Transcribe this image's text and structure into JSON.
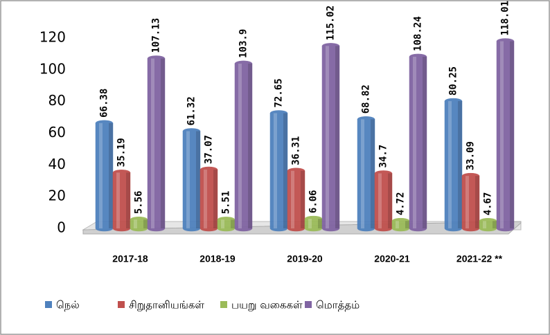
{
  "chart_data": {
    "type": "bar",
    "categories": [
      "2017-18",
      "2018-19",
      "2019-20",
      "2020-21",
      "2021-22 **"
    ],
    "series": [
      {
        "name": "நெல்",
        "color": "#4f81bd",
        "values": [
          66.38,
          61.32,
          72.65,
          68.82,
          80.25
        ]
      },
      {
        "name": "சிறுதானியங்கள்",
        "color": "#c0504d",
        "values": [
          35.19,
          37.07,
          36.31,
          34.7,
          33.09
        ]
      },
      {
        "name": "பயறு வகைகள்",
        "color": "#9bbb59",
        "values": [
          5.56,
          5.51,
          6.06,
          4.72,
          4.67
        ]
      },
      {
        "name": "மொத்தம்",
        "color": "#8064a2",
        "values": [
          107.13,
          103.9,
          115.02,
          108.24,
          118.01
        ]
      }
    ],
    "ylim": [
      0,
      120
    ],
    "yticks": [
      0,
      20,
      40,
      60,
      80,
      100,
      120
    ],
    "grid": false,
    "legend": "bottom"
  }
}
